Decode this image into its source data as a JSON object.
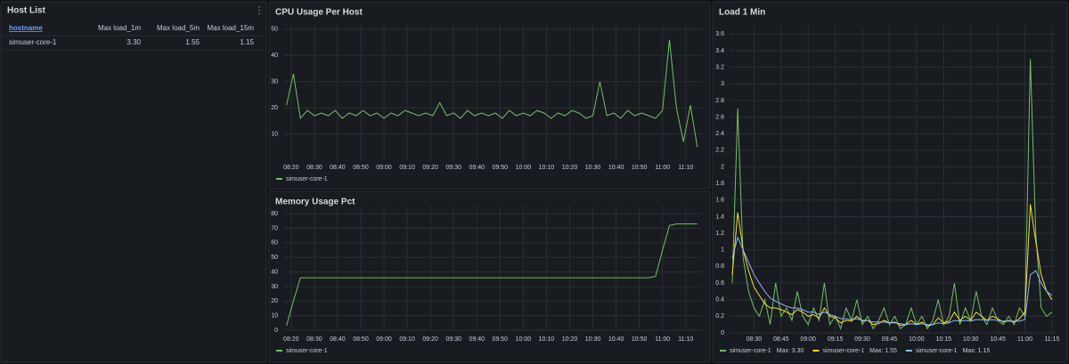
{
  "host_list": {
    "title": "Host List",
    "table": {
      "header": [
        "hostname",
        "Max load_1m",
        "Max load_5m",
        "Max load_15m"
      ],
      "rows": [
        [
          "simuser-core-1",
          "3.30",
          "1.55",
          "1.15"
        ]
      ]
    }
  },
  "chart_data": [
    {
      "type": "line",
      "title": "CPU Usage Per Host",
      "x": [
        "08:18",
        "08:21",
        "08:24",
        "08:27",
        "08:30",
        "08:33",
        "08:36",
        "08:39",
        "08:42",
        "08:45",
        "08:48",
        "08:51",
        "08:54",
        "08:57",
        "09:00",
        "09:03",
        "09:06",
        "09:09",
        "09:12",
        "09:15",
        "09:18",
        "09:21",
        "09:24",
        "09:27",
        "09:30",
        "09:33",
        "09:36",
        "09:39",
        "09:42",
        "09:45",
        "09:48",
        "09:51",
        "09:54",
        "09:57",
        "10:00",
        "10:03",
        "10:06",
        "10:09",
        "10:12",
        "10:15",
        "10:18",
        "10:21",
        "10:24",
        "10:27",
        "10:30",
        "10:33",
        "10:36",
        "10:39",
        "10:42",
        "10:45",
        "10:48",
        "10:51",
        "10:54",
        "10:57",
        "11:00",
        "11:03",
        "11:06",
        "11:09",
        "11:12",
        "11:15"
      ],
      "series": [
        {
          "name": "simuser-core-1",
          "color": "#73bf69",
          "values": [
            21,
            33,
            16,
            19,
            17,
            18,
            17,
            19,
            16,
            18,
            17,
            19,
            17,
            18,
            16,
            18,
            17,
            19,
            18,
            17,
            18,
            17,
            22,
            17,
            18,
            16,
            19,
            17,
            18,
            17,
            18,
            16,
            19,
            17,
            18,
            17,
            19,
            18,
            16,
            18,
            17,
            19,
            18,
            16,
            17,
            30,
            17,
            18,
            16,
            19,
            17,
            18,
            17,
            16,
            19,
            46,
            20,
            7,
            21,
            5
          ]
        }
      ],
      "xlim": [
        "08:17",
        "11:17"
      ],
      "xticks": [
        "08:20",
        "08:30",
        "08:40",
        "08:50",
        "09:00",
        "09:10",
        "09:20",
        "09:30",
        "09:40",
        "09:50",
        "10:00",
        "10:10",
        "10:20",
        "10:30",
        "10:40",
        "10:50",
        "11:00",
        "11:10"
      ],
      "ylim": [
        0,
        52
      ],
      "yticks": [
        10,
        20,
        30,
        40,
        50
      ],
      "grid": true
    },
    {
      "type": "line",
      "title": "Memory Usage Pct",
      "x": [
        "08:18",
        "08:21",
        "08:24",
        "08:27",
        "08:30",
        "08:33",
        "08:36",
        "08:39",
        "08:42",
        "08:45",
        "08:48",
        "08:51",
        "08:54",
        "08:57",
        "09:00",
        "09:03",
        "09:06",
        "09:09",
        "09:12",
        "09:15",
        "09:18",
        "09:21",
        "09:24",
        "09:27",
        "09:30",
        "09:33",
        "09:36",
        "09:39",
        "09:42",
        "09:45",
        "09:48",
        "09:51",
        "09:54",
        "09:57",
        "10:00",
        "10:03",
        "10:06",
        "10:09",
        "10:12",
        "10:15",
        "10:18",
        "10:21",
        "10:24",
        "10:27",
        "10:30",
        "10:33",
        "10:36",
        "10:39",
        "10:42",
        "10:45",
        "10:48",
        "10:51",
        "10:54",
        "10:57",
        "11:00",
        "11:03",
        "11:06",
        "11:09",
        "11:12",
        "11:15"
      ],
      "series": [
        {
          "name": "simuser-core-1",
          "color": "#73bf69",
          "values": [
            3,
            20,
            36,
            36,
            36,
            36,
            36,
            36,
            36,
            36,
            36,
            36,
            36,
            36,
            36,
            36,
            36,
            36,
            36,
            36,
            36,
            36,
            36,
            36,
            36,
            36,
            36,
            36,
            36,
            36,
            36,
            36,
            36,
            36,
            36,
            36,
            36,
            36,
            36,
            36,
            36,
            36,
            36,
            36,
            36,
            36,
            36,
            36,
            36,
            36,
            36,
            36,
            36,
            37,
            55,
            72,
            73,
            73,
            73,
            73
          ]
        }
      ],
      "xlim": [
        "08:17",
        "11:17"
      ],
      "xticks": [
        "08:20",
        "08:30",
        "08:40",
        "08:50",
        "09:00",
        "09:10",
        "09:20",
        "09:30",
        "09:40",
        "09:50",
        "10:00",
        "10:10",
        "10:20",
        "10:30",
        "10:40",
        "10:50",
        "11:00",
        "11:10"
      ],
      "ylim": [
        0,
        85
      ],
      "yticks": [
        0,
        10,
        20,
        30,
        40,
        50,
        60,
        70,
        80
      ],
      "grid": true
    },
    {
      "type": "line",
      "title": "Load 1 Min",
      "x": [
        "08:18",
        "08:21",
        "08:24",
        "08:27",
        "08:30",
        "08:33",
        "08:36",
        "08:39",
        "08:42",
        "08:45",
        "08:48",
        "08:51",
        "08:54",
        "08:57",
        "09:00",
        "09:03",
        "09:06",
        "09:09",
        "09:12",
        "09:15",
        "09:18",
        "09:21",
        "09:24",
        "09:27",
        "09:30",
        "09:33",
        "09:36",
        "09:39",
        "09:42",
        "09:45",
        "09:48",
        "09:51",
        "09:54",
        "09:57",
        "10:00",
        "10:03",
        "10:06",
        "10:09",
        "10:12",
        "10:15",
        "10:18",
        "10:21",
        "10:24",
        "10:27",
        "10:30",
        "10:33",
        "10:36",
        "10:39",
        "10:42",
        "10:45",
        "10:48",
        "10:51",
        "10:54",
        "10:57",
        "11:00",
        "11:03",
        "11:06",
        "11:09",
        "11:12",
        "11:15"
      ],
      "series": [
        {
          "name": "simuser-core-1",
          "legend_calc": "Max: 3.30",
          "color": "#73bf69",
          "values": [
            0.6,
            2.7,
            0.9,
            0.5,
            0.3,
            0.2,
            0.4,
            0.1,
            0.6,
            0.2,
            0.3,
            0.15,
            0.5,
            0.2,
            0.1,
            0.3,
            0.15,
            0.6,
            0.1,
            0.2,
            0.05,
            0.3,
            0.15,
            0.4,
            0.1,
            0.2,
            0.05,
            0.15,
            0.3,
            0.1,
            0.2,
            0.05,
            0.1,
            0.3,
            0.1,
            0.2,
            0.05,
            0.15,
            0.4,
            0.1,
            0.2,
            0.6,
            0.1,
            0.3,
            0.15,
            0.5,
            0.2,
            0.1,
            0.3,
            0.15,
            0.1,
            0.2,
            0.1,
            0.3,
            0.2,
            3.3,
            1.2,
            0.3,
            0.2,
            0.25
          ]
        },
        {
          "name": "simuser-core-1",
          "legend_calc": "Max: 1.55",
          "color": "#fade2a",
          "values": [
            0.7,
            1.45,
            1.0,
            0.75,
            0.55,
            0.45,
            0.35,
            0.3,
            0.3,
            0.28,
            0.25,
            0.22,
            0.28,
            0.25,
            0.2,
            0.22,
            0.18,
            0.3,
            0.2,
            0.18,
            0.12,
            0.15,
            0.14,
            0.2,
            0.14,
            0.15,
            0.1,
            0.11,
            0.15,
            0.12,
            0.13,
            0.09,
            0.1,
            0.15,
            0.1,
            0.13,
            0.08,
            0.1,
            0.18,
            0.12,
            0.14,
            0.25,
            0.15,
            0.2,
            0.15,
            0.25,
            0.2,
            0.15,
            0.2,
            0.17,
            0.13,
            0.15,
            0.13,
            0.17,
            0.25,
            1.55,
            1.1,
            0.7,
            0.5,
            0.4
          ]
        },
        {
          "name": "simuser-core-1",
          "legend_calc": "Max: 1.15",
          "color": "#8ab8ff",
          "values": [
            0.9,
            1.15,
            1.0,
            0.85,
            0.7,
            0.6,
            0.5,
            0.42,
            0.38,
            0.35,
            0.32,
            0.3,
            0.3,
            0.28,
            0.25,
            0.25,
            0.22,
            0.25,
            0.22,
            0.2,
            0.17,
            0.17,
            0.16,
            0.17,
            0.15,
            0.15,
            0.13,
            0.13,
            0.13,
            0.12,
            0.12,
            0.11,
            0.1,
            0.11,
            0.1,
            0.11,
            0.1,
            0.1,
            0.12,
            0.11,
            0.12,
            0.15,
            0.14,
            0.15,
            0.14,
            0.16,
            0.16,
            0.15,
            0.16,
            0.15,
            0.14,
            0.14,
            0.14,
            0.14,
            0.16,
            0.7,
            0.75,
            0.6,
            0.5,
            0.45
          ]
        }
      ],
      "xlim": [
        "08:17",
        "11:17"
      ],
      "xticks": [
        "08:30",
        "08:45",
        "09:00",
        "09:15",
        "09:30",
        "09:45",
        "10:00",
        "10:15",
        "10:30",
        "10:45",
        "11:00",
        "11:15"
      ],
      "ylim": [
        0,
        3.7
      ],
      "yticks": [
        0,
        0.2,
        0.4,
        0.6,
        0.8,
        1,
        1.2,
        1.4,
        1.6,
        1.8,
        2,
        2.2,
        2.4,
        2.6,
        2.8,
        3,
        3.2,
        3.4,
        3.6
      ],
      "grid": true
    }
  ]
}
